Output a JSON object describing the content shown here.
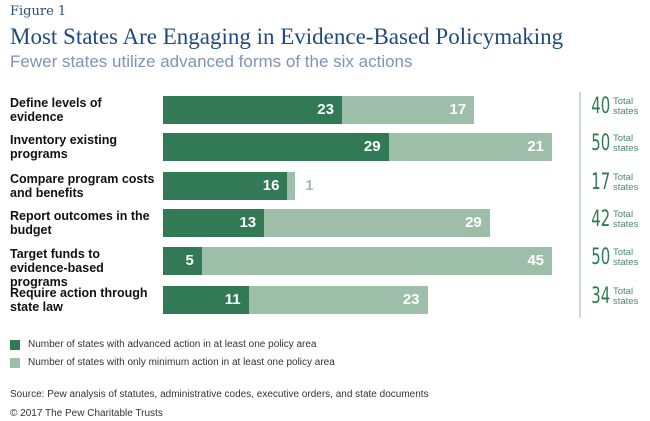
{
  "figure_label": "Figure 1",
  "chart_data": {
    "type": "bar",
    "stacked": true,
    "orientation": "horizontal",
    "title": "Most States Are Engaging in Evidence-Based Policymaking",
    "subtitle": "Fewer states utilize advanced forms of the six actions",
    "categories": [
      "Define levels of evidence",
      "Inventory existing programs",
      "Compare program costs and benefits",
      "Report outcomes in the budget",
      "Target funds to evidence-based programs",
      "Require action through state law"
    ],
    "series": [
      {
        "name": "Number of states with advanced action in at least one policy area",
        "color": "#317a55",
        "values": [
          23,
          29,
          16,
          13,
          5,
          11
        ]
      },
      {
        "name": "Number of states with only minimum action in at least one policy area",
        "color": "#9dbfa9",
        "values": [
          17,
          21,
          1,
          29,
          45,
          23
        ]
      }
    ],
    "totals": [
      40,
      50,
      17,
      42,
      50,
      34
    ],
    "total_label": "Total states",
    "xlim": [
      0,
      50
    ],
    "grid": false,
    "legend": "bottom-left"
  },
  "source": "Source: Pew analysis of statutes, administrative codes, executive orders, and state documents",
  "copyright": "© 2017 The Pew Charitable Trusts"
}
